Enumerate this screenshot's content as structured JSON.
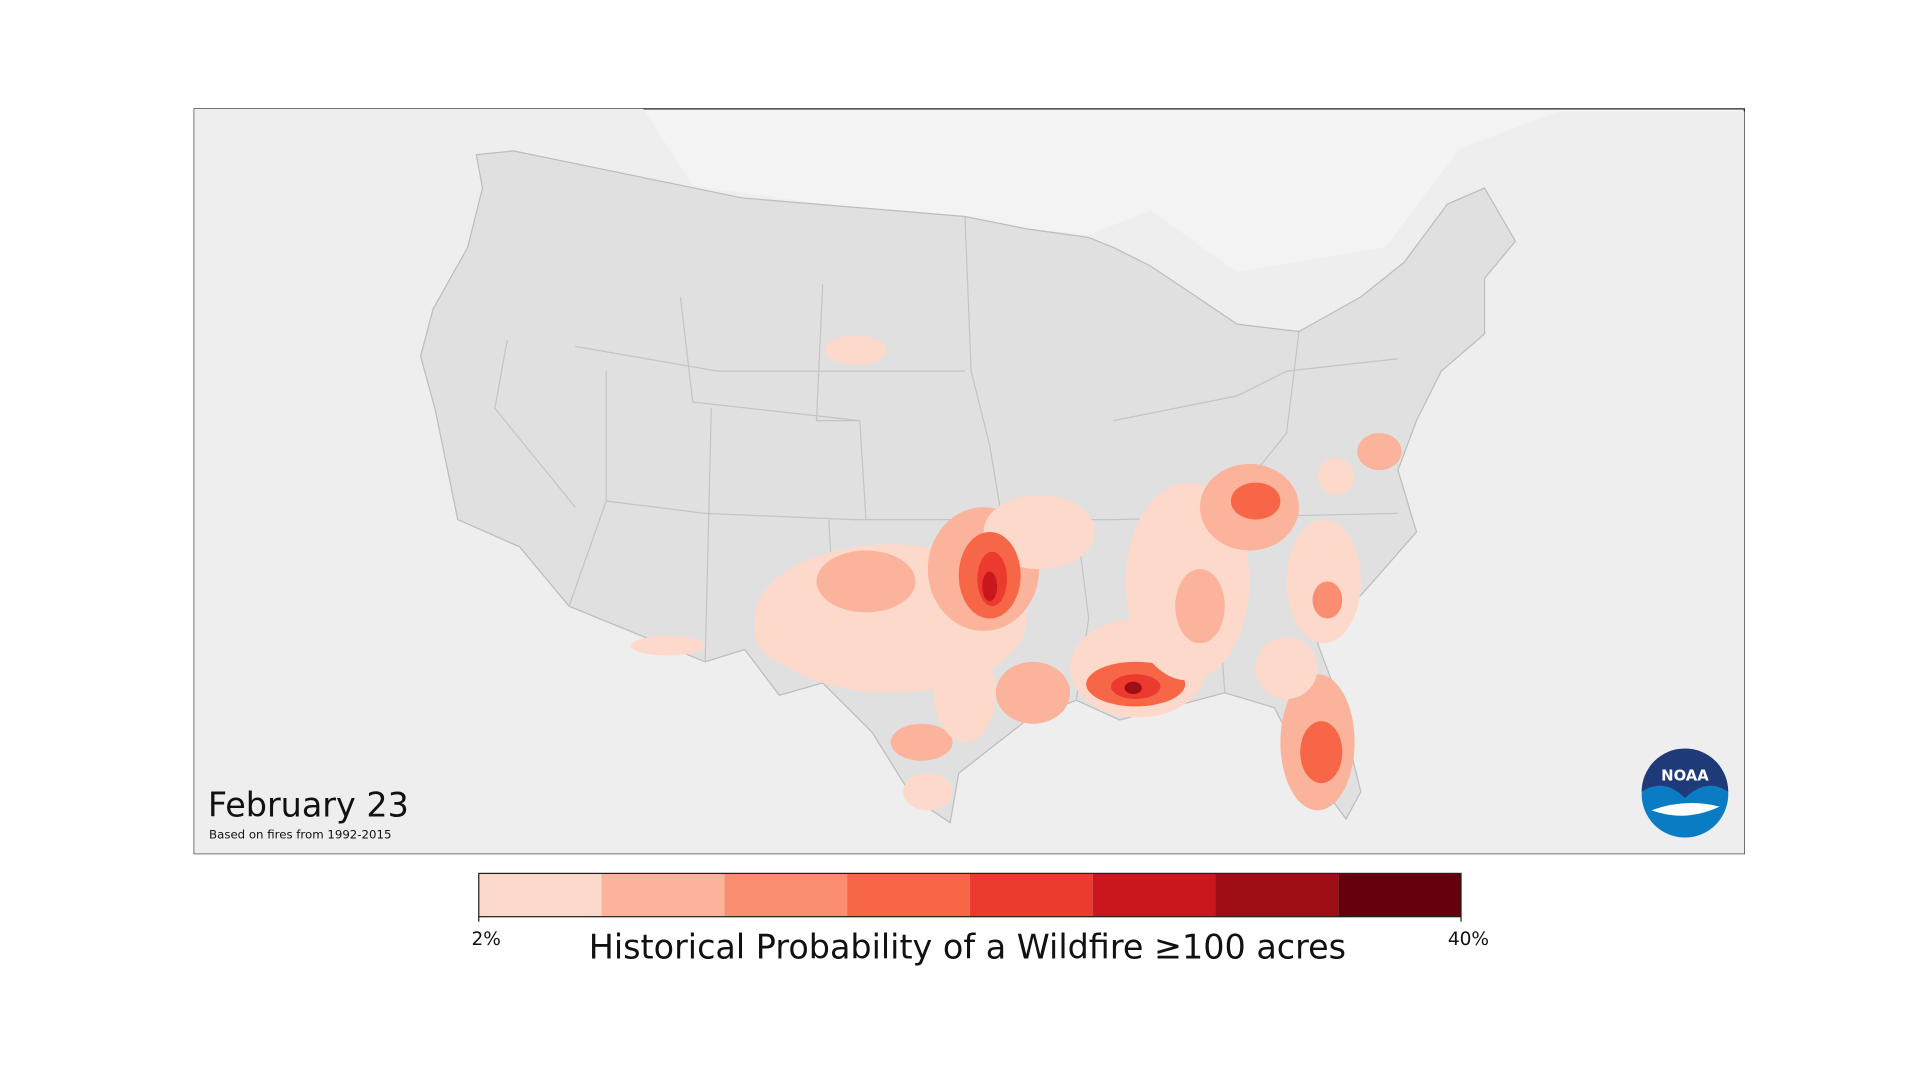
{
  "map": {
    "title": "February 23",
    "subtitle": "Based on fires from 1992-2015",
    "logo": "NOAA"
  },
  "legend": {
    "title": "Historical Probability of a Wildfire ≥100 acres",
    "colors": [
      "#fdd9cb",
      "#fbb39b",
      "#fb8d70",
      "#f86648",
      "#ec3b2e",
      "#c9171d",
      "#9f0e17",
      "#67000d"
    ],
    "min": {
      "value": 2,
      "label": "2%"
    },
    "max": {
      "value": 40,
      "label": "40%"
    }
  }
}
